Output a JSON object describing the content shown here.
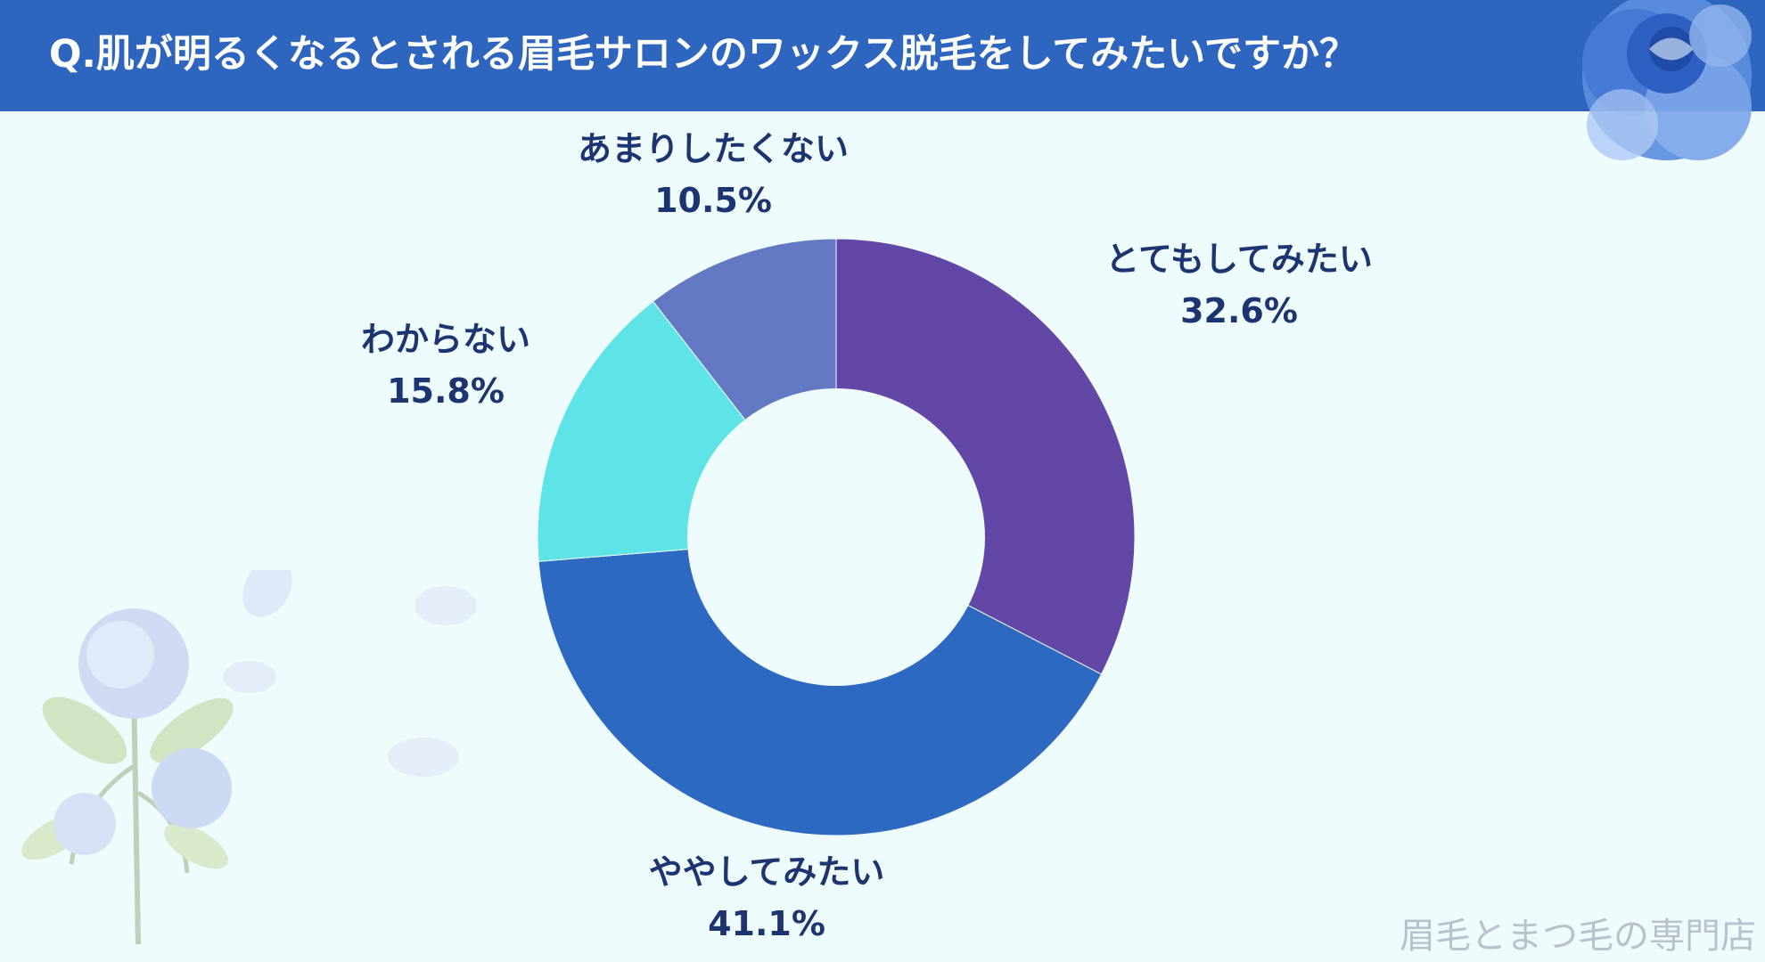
{
  "title": "Q.肌が明るくなるとされる眉毛サロンのワックス脱毛をしてみたいですか？",
  "watermark": "眉毛とまつ毛の専門店",
  "colors": {
    "header": "#2e66bf",
    "background": "#effcfd",
    "label_text": "#1d3470"
  },
  "chart_data": {
    "type": "pie",
    "variant": "donut",
    "title": "Q.肌が明るくなるとされる眉毛サロンのワックス脱毛をしてみたいですか？",
    "unit": "%",
    "slices": [
      {
        "label": "とてもしてみたい",
        "value": 32.6,
        "display": "32.6%",
        "color": "#6347a6"
      },
      {
        "label": "ややしてみたい",
        "value": 41.1,
        "display": "41.1%",
        "color": "#2d69c0"
      },
      {
        "label": "わからない",
        "value": 15.8,
        "display": "15.8%",
        "color": "#5ee3e6"
      },
      {
        "label": "あまりしたくない",
        "value": 10.5,
        "display": "10.5%",
        "color": "#6478c3"
      }
    ]
  }
}
